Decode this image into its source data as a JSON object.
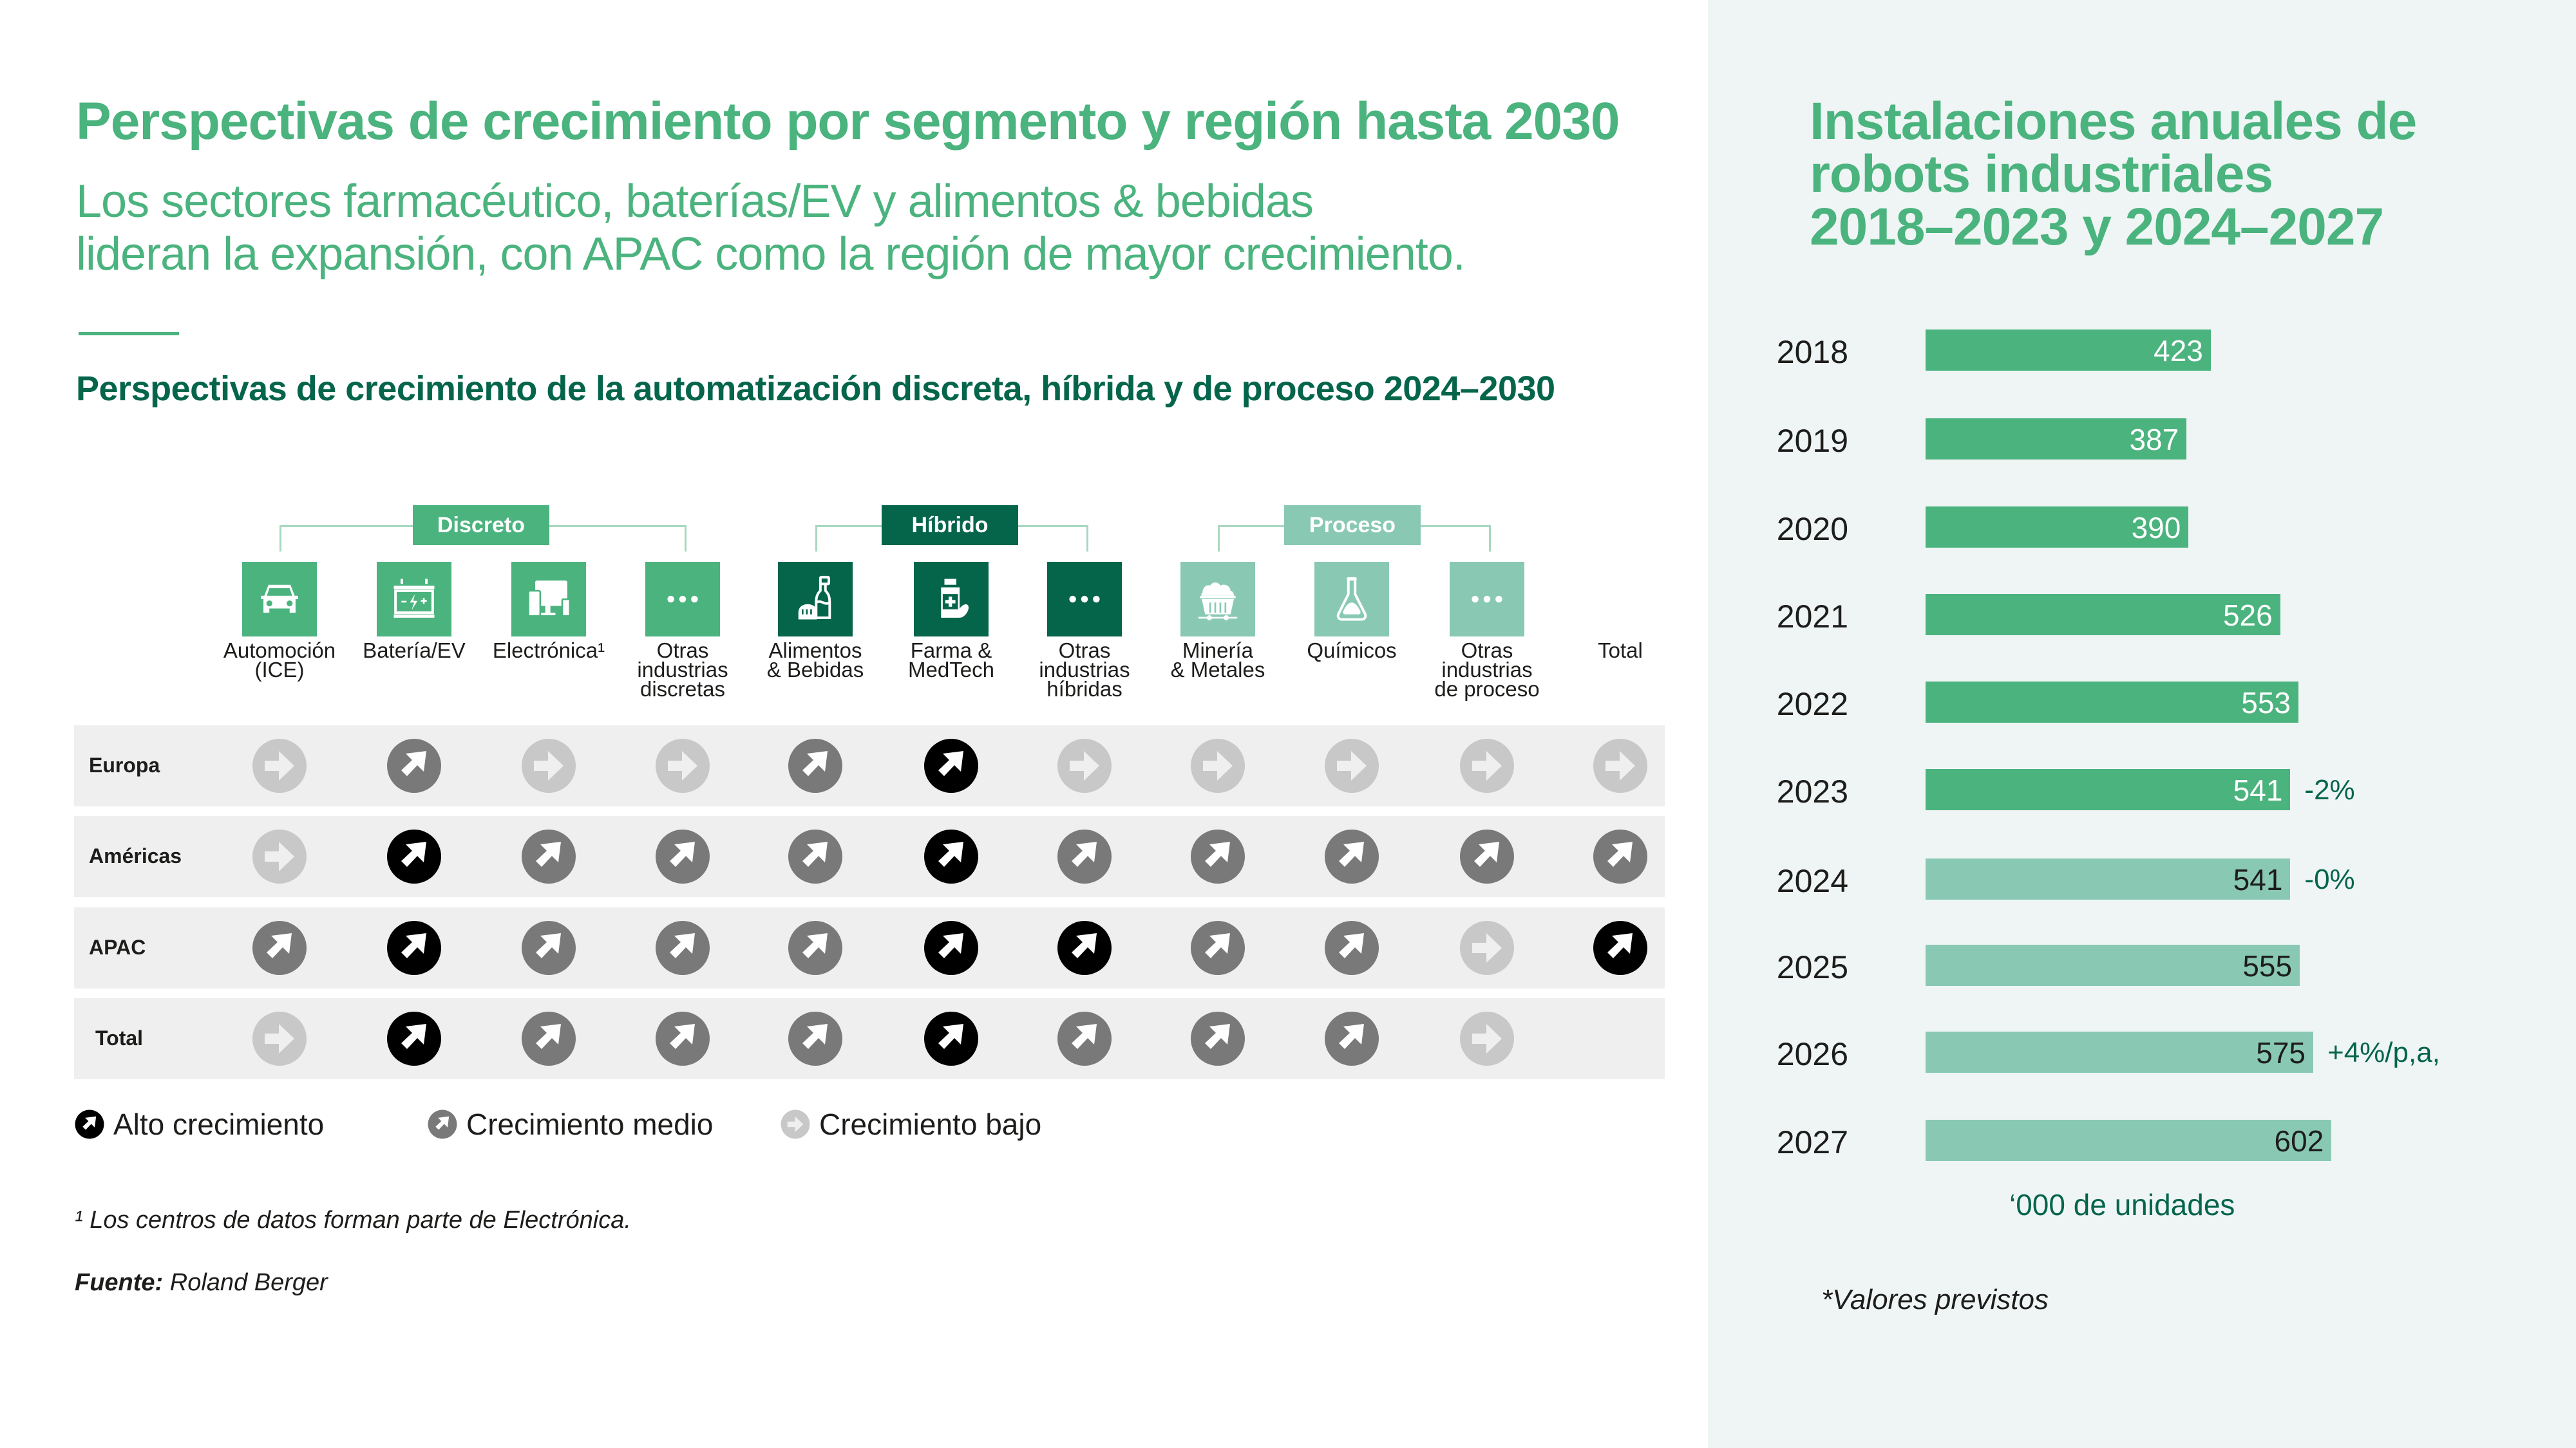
{
  "header": {
    "title": "Perspectivas de crecimiento por segmento y región hasta 2030",
    "subtitle": "Los sectores farmacéutico, baterías/EV y alimentos & bebidas\nlideran la expansión, con APAC como la región de mayor crecimiento.",
    "subheading": "Perspectivas de crecimiento de la automatización discreta, híbrida y de proceso 2024–2030"
  },
  "colors": {
    "brand_green": "#4bb37e",
    "dark_green": "#05654b",
    "light_green": "#89c9b4",
    "panel_bg": "#eff5f5",
    "row_bg": "#efefef",
    "high": "#000000",
    "medium": "#797979",
    "low": "#c8c8c8"
  },
  "groups": [
    {
      "label": "Discreto",
      "color": "#4bb37e",
      "columns": [
        0,
        3
      ]
    },
    {
      "label": "Híbrido",
      "color": "#05654b",
      "columns": [
        4,
        6
      ]
    },
    {
      "label": "Proceso",
      "color": "#89c9b4",
      "columns": [
        7,
        9
      ]
    }
  ],
  "segments": [
    {
      "label": "Automoción\n(ICE)",
      "icon": "car-icon",
      "group": 0
    },
    {
      "label": "Batería/EV",
      "icon": "battery-icon",
      "group": 0
    },
    {
      "label": "Electrónica¹",
      "icon": "electronics-icon",
      "group": 0
    },
    {
      "label": "Otras\nindustrias\ndiscretas",
      "icon": "more-dots-icon",
      "group": 0
    },
    {
      "label": "Alimentos\n& Bebidas",
      "icon": "food-bottle-icon",
      "group": 1
    },
    {
      "label": "Farma &\nMedTech",
      "icon": "medicine-bottle-icon",
      "group": 1
    },
    {
      "label": "Otras\nindustrias\nhíbridas",
      "icon": "more-dots-icon",
      "group": 1
    },
    {
      "label": "Minería\n& Metales",
      "icon": "mining-cart-icon",
      "group": 2
    },
    {
      "label": "Químicos",
      "icon": "flask-icon",
      "group": 2
    },
    {
      "label": "Otras\nindustrias\nde proceso",
      "icon": "more-dots-icon",
      "group": 2
    },
    {
      "label": "Total",
      "icon": null,
      "group": null
    }
  ],
  "matrix": {
    "rows": [
      {
        "label": "Europa",
        "values": [
          "low",
          "medium",
          "low",
          "low",
          "medium",
          "high",
          "low",
          "low",
          "low",
          "low",
          "low"
        ]
      },
      {
        "label": "Américas",
        "values": [
          "low",
          "high",
          "medium",
          "medium",
          "medium",
          "high",
          "medium",
          "medium",
          "medium",
          "medium",
          "medium"
        ]
      },
      {
        "label": "APAC",
        "values": [
          "medium",
          "high",
          "medium",
          "medium",
          "medium",
          "high",
          "high",
          "medium",
          "medium",
          "low",
          "high"
        ]
      },
      {
        "label": "Total",
        "values": [
          "low",
          "high",
          "medium",
          "medium",
          "medium",
          "high",
          "medium",
          "medium",
          "medium",
          "low",
          null
        ]
      }
    ]
  },
  "legend": [
    {
      "key": "high",
      "label": "Alto crecimiento"
    },
    {
      "key": "medium",
      "label": "Crecimiento medio"
    },
    {
      "key": "low",
      "label": "Crecimiento bajo"
    }
  ],
  "footnote": "¹ Los centros de datos forman parte de Electrónica.",
  "source": {
    "label": "Fuente:",
    "value": " Roland Berger"
  },
  "chart_data": {
    "type": "bar",
    "orientation": "horizontal",
    "title": "Instalaciones anuales de\nrobots industriales\n2018–2023 y 2024–2027",
    "categories": [
      "2018",
      "2019",
      "2020",
      "2021",
      "2022",
      "2023",
      "2024",
      "2025",
      "2026",
      "2027"
    ],
    "values": [
      423,
      387,
      390,
      526,
      553,
      541,
      541,
      555,
      575,
      602
    ],
    "forecast": [
      false,
      false,
      false,
      false,
      false,
      false,
      true,
      true,
      true,
      true
    ],
    "annotations": [
      {
        "category": "2023",
        "text": "-2%"
      },
      {
        "category": "2024",
        "text": "-0%"
      },
      {
        "category": "2026",
        "text": "+4%/p,a,"
      }
    ],
    "unit_label": "‘000 de unidades",
    "note": "*Valores previstos",
    "xlim": [
      0,
      700
    ],
    "grid": false,
    "series_colors": {
      "actual": "#4bb37e",
      "forecast": "#89c9b4"
    }
  }
}
